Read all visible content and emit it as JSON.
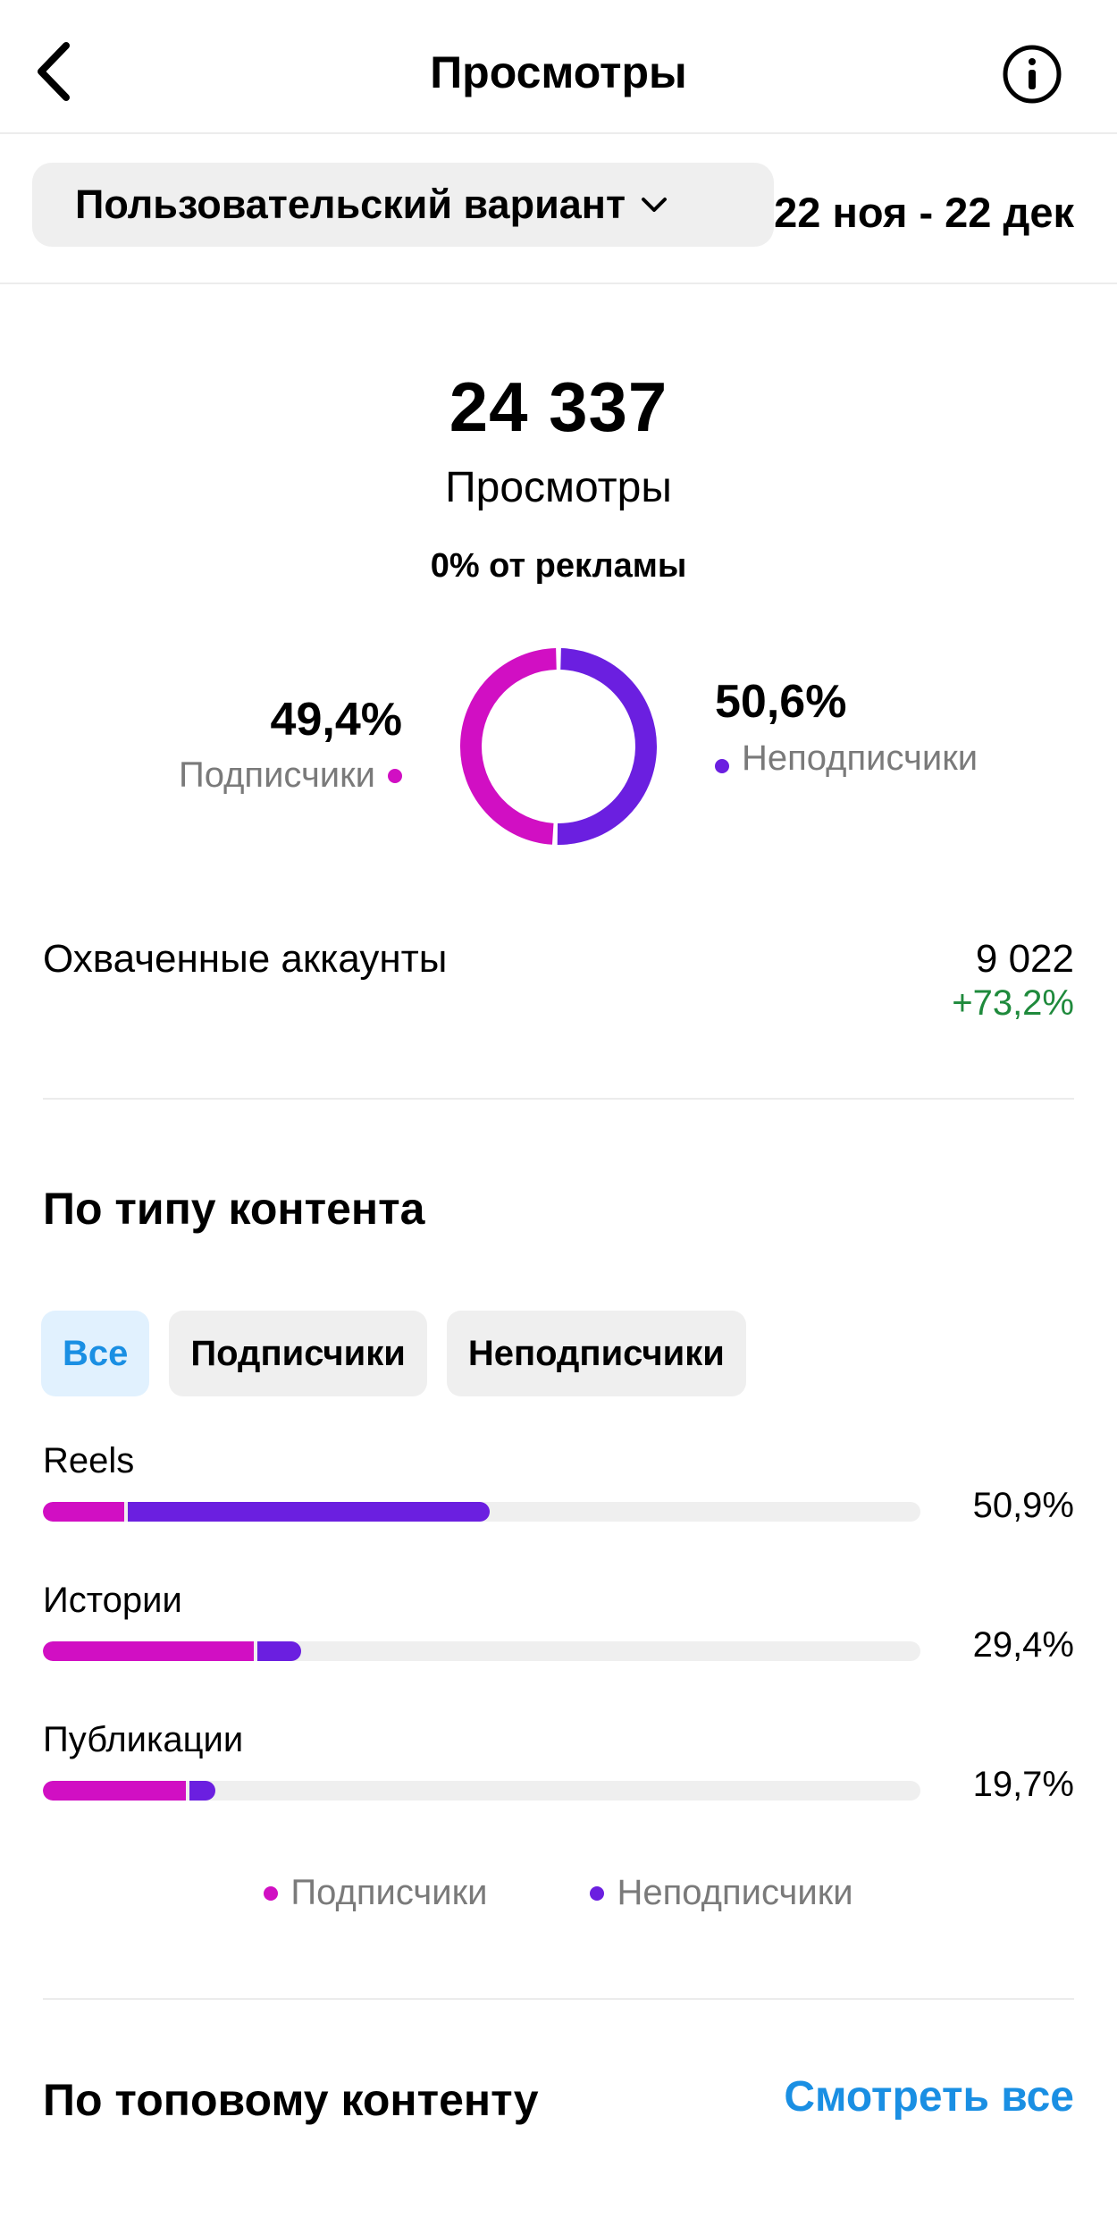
{
  "header": {
    "title": "Просмотры",
    "back_icon": "chevron-left-icon",
    "info_icon": "info-icon"
  },
  "filters": {
    "variant_label": "Пользовательский вариант",
    "date_range": "22 ноя - 22 дек"
  },
  "summary": {
    "total_views": "24 337",
    "views_label": "Просмотры",
    "ads_share": "0% от рекламы"
  },
  "audience_split": {
    "followers": {
      "percent": "49,4%",
      "label": "Подписчики",
      "value": 49.4,
      "color": "#d10fc3"
    },
    "non_followers": {
      "percent": "50,6%",
      "label": "Неподписчики",
      "value": 50.6,
      "color": "#6b1fe0"
    }
  },
  "reach": {
    "label": "Охваченные аккаунты",
    "value": "9 022",
    "change": "+73,2%"
  },
  "content_type": {
    "title": "По типу контента",
    "tabs": [
      {
        "label": "Все",
        "active": true
      },
      {
        "label": "Подписчики",
        "active": false
      },
      {
        "label": "Неподписчики",
        "active": false
      }
    ],
    "rows": [
      {
        "name": "Reels",
        "percent_label": "50,9%",
        "total": 50.9,
        "followers_share": 9.3,
        "non_followers_share": 41.6
      },
      {
        "name": "Истории",
        "percent_label": "29,4%",
        "total": 29.4,
        "followers_share": 24.0,
        "non_followers_share": 5.4
      },
      {
        "name": "Публикации",
        "percent_label": "19,7%",
        "total": 19.7,
        "followers_share": 16.3,
        "non_followers_share": 3.4
      }
    ],
    "legend": {
      "followers": "Подписчики",
      "non_followers": "Неподписчики"
    }
  },
  "top_content": {
    "title": "По топовому контенту",
    "see_all": "Смотреть все"
  }
}
